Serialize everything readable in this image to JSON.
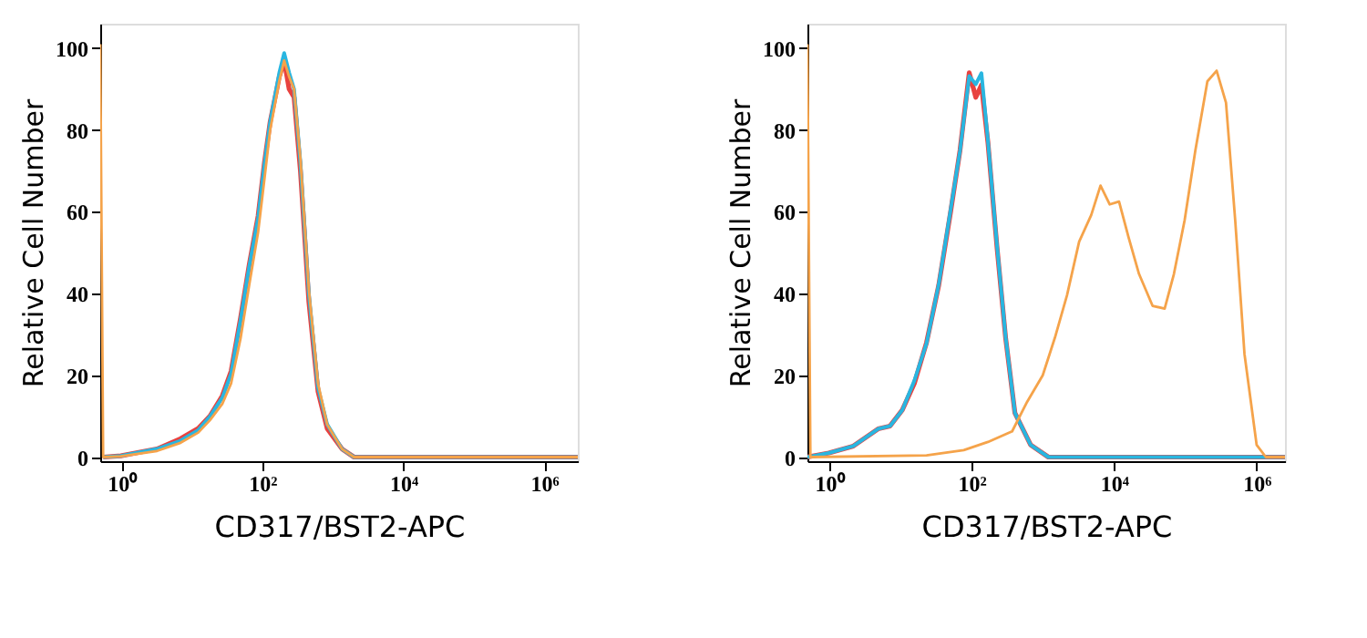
{
  "chart_data": [
    {
      "type": "line",
      "xlabel": "CD317/BST2-APC",
      "ylabel": "Relative Cell Number",
      "log": "x",
      "grid": false,
      "marker": "none",
      "line_style": "solid",
      "xlim": [
        0.5,
        3000000
      ],
      "xticks": [
        {
          "value": 1,
          "label": "10⁰"
        },
        {
          "value": 100,
          "label": "10²"
        },
        {
          "value": 10000,
          "label": "10⁴"
        },
        {
          "value": 1000000,
          "label": "10⁶"
        }
      ],
      "ylim": [
        -1,
        106
      ],
      "yticks": [
        0,
        20,
        40,
        60,
        80,
        100
      ],
      "series": [
        {
          "color": "#e8423f",
          "x": [
            0.55,
            0.98,
            3.2,
            6.9,
            12.3,
            18,
            27,
            36,
            49,
            65,
            87,
            107,
            129,
            174,
            204,
            240,
            282,
            347,
            457,
            617,
            832,
            1350,
            2000,
            3000000
          ],
          "values": [
            0,
            0.3,
            2,
            4.5,
            7,
            10,
            15,
            21,
            34,
            47,
            59,
            72,
            82,
            93,
            97,
            90,
            88,
            70,
            38,
            16,
            7,
            2,
            0,
            0
          ]
        },
        {
          "color": "#29b6e0",
          "x": [
            0.55,
            0.98,
            3.2,
            6.9,
            12.3,
            18,
            27,
            36,
            49,
            65,
            87,
            107,
            129,
            174,
            204,
            240,
            282,
            347,
            457,
            617,
            832,
            1350,
            2000,
            3000000
          ],
          "values": [
            0,
            0.3,
            2,
            4,
            6.6,
            9.9,
            14.5,
            20.4,
            33.5,
            46.6,
            58.5,
            71.6,
            82,
            94,
            98.8,
            94,
            90,
            72,
            40,
            17,
            8,
            2,
            0,
            0
          ]
        },
        {
          "color": "#f5a34a",
          "x": [
            0.5,
            0.55,
            0.98,
            3.2,
            6.9,
            12.3,
            18,
            27,
            36,
            49,
            65,
            87,
            107,
            129,
            174,
            204,
            240,
            282,
            347,
            457,
            617,
            832,
            1350,
            2000,
            3000000
          ],
          "values": [
            101,
            0,
            0.2,
            1.5,
            3.5,
            6,
            9,
            13,
            18,
            29,
            42,
            55,
            68,
            80,
            92,
            97,
            93,
            90,
            73,
            41,
            18,
            8,
            2,
            0,
            0
          ]
        }
      ]
    },
    {
      "type": "line",
      "xlabel": "CD317/BST2-APC",
      "ylabel": "Relative Cell Number",
      "log": "x",
      "grid": false,
      "marker": "none",
      "line_style": "solid",
      "xlim": [
        0.5,
        2500000
      ],
      "xticks": [
        {
          "value": 1,
          "label": "10⁰"
        },
        {
          "value": 100,
          "label": "10²"
        },
        {
          "value": 10000,
          "label": "10⁴"
        },
        {
          "value": 1000000,
          "label": "10⁶"
        }
      ],
      "ylim": [
        -1,
        106
      ],
      "yticks": [
        0,
        20,
        40,
        60,
        80,
        100
      ],
      "series": [
        {
          "color": "#e8423f",
          "x": [
            0.5,
            1,
            2.2,
            4.9,
            7.2,
            10.7,
            15.8,
            23.4,
            34.7,
            51,
            69,
            93,
            115,
            138,
            170,
            229,
            302,
            407,
            676,
            1200,
            2500000
          ],
          "values": [
            0,
            1,
            2.7,
            6.9,
            7.6,
            11.5,
            18,
            28,
            42,
            60,
            75,
            94,
            88,
            91,
            77,
            51,
            29,
            10.8,
            3,
            0,
            0
          ]
        },
        {
          "color": "#29b6e0",
          "x": [
            0.5,
            1,
            2.2,
            4.9,
            7.2,
            10.7,
            15.8,
            23.4,
            34.7,
            51,
            69,
            93,
            115,
            138,
            170,
            229,
            302,
            407,
            676,
            1200,
            2500000
          ],
          "values": [
            0,
            1,
            2.7,
            6.9,
            7.6,
            11.5,
            18.7,
            27.8,
            42.2,
            60.5,
            74.9,
            93.2,
            91.2,
            93.9,
            77.5,
            51.4,
            29.2,
            10.8,
            3,
            0,
            0
          ]
        },
        {
          "color": "#f5a34a",
          "x": [
            0.5,
            0.55,
            23.4,
            78,
            170,
            372,
            603,
            1000,
            1480,
            2190,
            3240,
            4790,
            6460,
            8710,
            11750,
            15850,
            22400,
            34700,
            51300,
            69200,
            97700,
            138000,
            204000,
            275000,
            372000,
            501000,
            676000,
            1000000,
            1350000,
            2500000
          ],
          "values": [
            101,
            0,
            0.4,
            1.7,
            3.7,
            6.3,
            13.5,
            20,
            29.2,
            39.6,
            52.7,
            59.2,
            66.4,
            61.8,
            62.5,
            54,
            44.8,
            37,
            36.3,
            44.8,
            57.9,
            74.9,
            91.9,
            94.5,
            86.7,
            57.9,
            25.2,
            3,
            0,
            0
          ]
        }
      ]
    }
  ]
}
